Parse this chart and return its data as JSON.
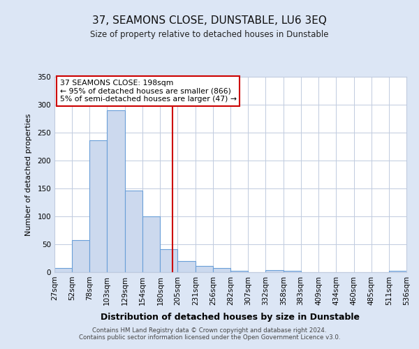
{
  "title": "37, SEAMONS CLOSE, DUNSTABLE, LU6 3EQ",
  "subtitle": "Size of property relative to detached houses in Dunstable",
  "xlabel": "Distribution of detached houses by size in Dunstable",
  "ylabel": "Number of detached properties",
  "bar_edges": [
    27,
    52,
    78,
    103,
    129,
    154,
    180,
    205,
    231,
    256,
    282,
    307,
    332,
    358,
    383,
    409,
    434,
    460,
    485,
    511,
    536
  ],
  "bar_heights": [
    8,
    57,
    236,
    290,
    146,
    100,
    41,
    20,
    11,
    7,
    3,
    0,
    4,
    3,
    0,
    0,
    0,
    0,
    0,
    2
  ],
  "bar_color": "#ccd9ee",
  "bar_edgecolor": "#6a9fd8",
  "property_line_x": 198,
  "property_line_color": "#cc0000",
  "annotation_title": "37 SEAMONS CLOSE: 198sqm",
  "annotation_line1": "← 95% of detached houses are smaller (866)",
  "annotation_line2": "5% of semi-detached houses are larger (47) →",
  "annotation_box_edgecolor": "#cc0000",
  "ylim": [
    0,
    350
  ],
  "yticks": [
    0,
    50,
    100,
    150,
    200,
    250,
    300,
    350
  ],
  "xtick_labels": [
    "27sqm",
    "52sqm",
    "78sqm",
    "103sqm",
    "129sqm",
    "154sqm",
    "180sqm",
    "205sqm",
    "231sqm",
    "256sqm",
    "282sqm",
    "307sqm",
    "332sqm",
    "358sqm",
    "383sqm",
    "409sqm",
    "434sqm",
    "460sqm",
    "485sqm",
    "511sqm",
    "536sqm"
  ],
  "footer_line1": "Contains HM Land Registry data © Crown copyright and database right 2024.",
  "footer_line2": "Contains public sector information licensed under the Open Government Licence v3.0.",
  "bg_color": "#dce6f5",
  "plot_bg_color": "#ffffff",
  "grid_color": "#c0cbdf"
}
